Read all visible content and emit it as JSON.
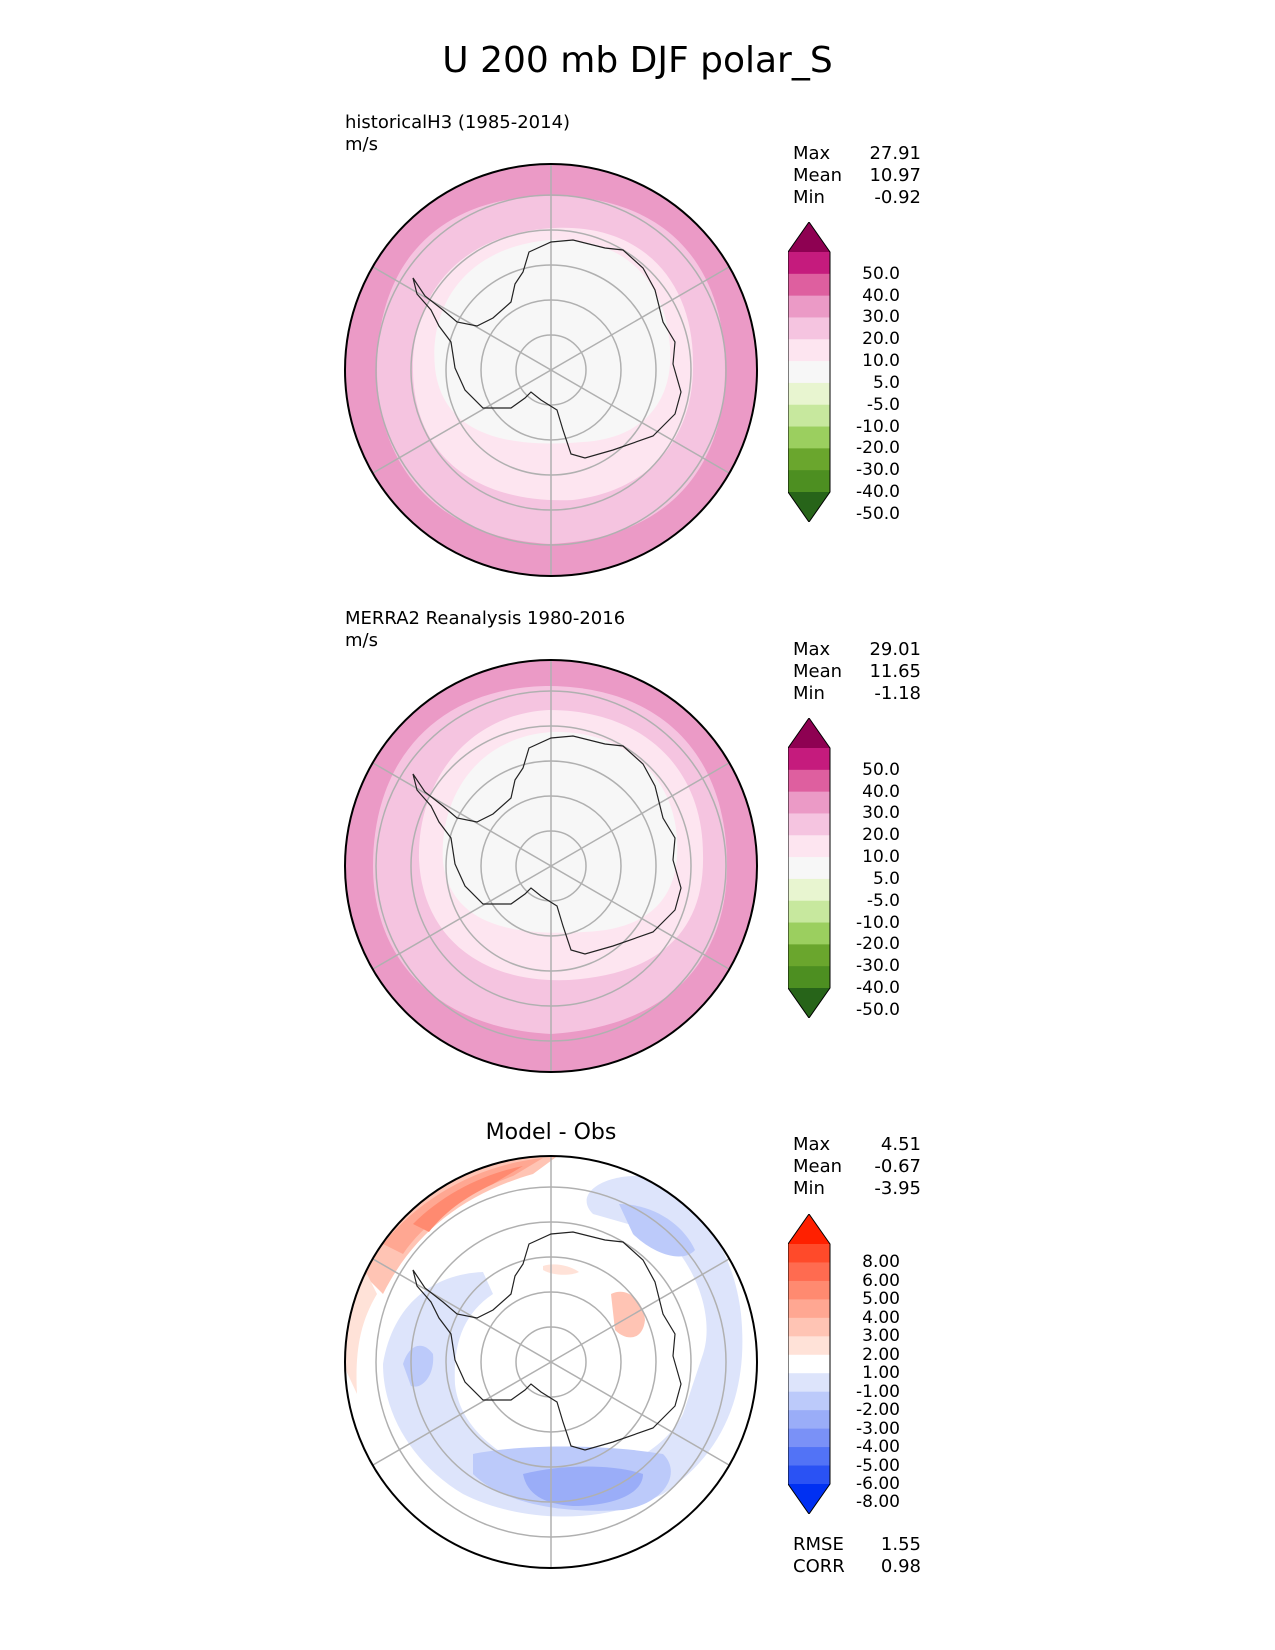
{
  "title": "U 200 mb DJF polar_S",
  "panels": [
    {
      "id": "test",
      "title": "historicalH3 (1985-2014)",
      "units": "m/s",
      "stats": {
        "max_label": "Max",
        "max": "27.91",
        "mean_label": "Mean",
        "mean": "10.97",
        "min_label": "Min",
        "min": "-0.92"
      },
      "colorbar": {
        "labels": [
          "50.0",
          "40.0",
          "30.0",
          "20.0",
          "10.0",
          "5.0",
          "-5.0",
          "-10.0",
          "-20.0",
          "-30.0",
          "-40.0",
          "-50.0"
        ],
        "colors": [
          "#8e0152",
          "#c51b7d",
          "#de5f9f",
          "#eb9ac6",
          "#f5c4e0",
          "#fde5f0",
          "#f7f7f7",
          "#e8f5d0",
          "#c7e89e",
          "#9bcf5f",
          "#6aa62d",
          "#4d8f21",
          "#276419"
        ]
      }
    },
    {
      "id": "reference",
      "title": "MERRA2 Reanalysis 1980-2016",
      "units": "m/s",
      "stats": {
        "max_label": "Max",
        "max": "29.01",
        "mean_label": "Mean",
        "mean": "11.65",
        "min_label": "Min",
        "min": "-1.18"
      },
      "colorbar": {
        "labels": [
          "50.0",
          "40.0",
          "30.0",
          "20.0",
          "10.0",
          "5.0",
          "-5.0",
          "-10.0",
          "-20.0",
          "-30.0",
          "-40.0",
          "-50.0"
        ],
        "colors": [
          "#8e0152",
          "#c51b7d",
          "#de5f9f",
          "#eb9ac6",
          "#f5c4e0",
          "#fde5f0",
          "#f7f7f7",
          "#e8f5d0",
          "#c7e89e",
          "#9bcf5f",
          "#6aa62d",
          "#4d8f21",
          "#276419"
        ]
      }
    },
    {
      "id": "diff",
      "title": "Model - Obs",
      "stats": {
        "max_label": "Max",
        "max": "4.51",
        "mean_label": "Mean",
        "mean": "-0.67",
        "min_label": "Min",
        "min": "-3.95",
        "rmse_label": "RMSE",
        "rmse": "1.55",
        "corr_label": "CORR",
        "corr": "0.98"
      },
      "colorbar": {
        "labels": [
          "8.00",
          "6.00",
          "5.00",
          "4.00",
          "3.00",
          "2.00",
          "1.00",
          "-1.00",
          "-2.00",
          "-3.00",
          "-4.00",
          "-5.00",
          "-6.00",
          "-8.00"
        ],
        "colors": [
          "#ff2000",
          "#ff4a2a",
          "#ff6b50",
          "#ff8a70",
          "#ffa792",
          "#ffc4b4",
          "#ffe2d8",
          "#ffffff",
          "#dde4fb",
          "#bccafa",
          "#9aadf8",
          "#7a91f7",
          "#5273f6",
          "#2a52f4",
          "#0030f2"
        ]
      }
    }
  ],
  "chart_data": {
    "type": "polar_contour_map",
    "region": "polar_S",
    "variable": "U 200 mb",
    "season": "DJF",
    "panels": [
      {
        "name": "historicalH3 (1985-2014)",
        "units": "m/s",
        "max": 27.91,
        "mean": 10.97,
        "min": -0.92,
        "levels": [
          -50,
          -40,
          -30,
          -20,
          -10,
          -5,
          5,
          10,
          20,
          30,
          40,
          50
        ]
      },
      {
        "name": "MERRA2 Reanalysis 1980-2016",
        "units": "m/s",
        "max": 29.01,
        "mean": 11.65,
        "min": -1.18,
        "levels": [
          -50,
          -40,
          -30,
          -20,
          -10,
          -5,
          5,
          10,
          20,
          30,
          40,
          50
        ]
      },
      {
        "name": "Model - Obs",
        "max": 4.51,
        "mean": -0.67,
        "min": -3.95,
        "rmse": 1.55,
        "corr": 0.98,
        "levels": [
          -8,
          -6,
          -5,
          -4,
          -3,
          -2,
          -1,
          1,
          2,
          3,
          4,
          5,
          6,
          8
        ]
      }
    ]
  }
}
